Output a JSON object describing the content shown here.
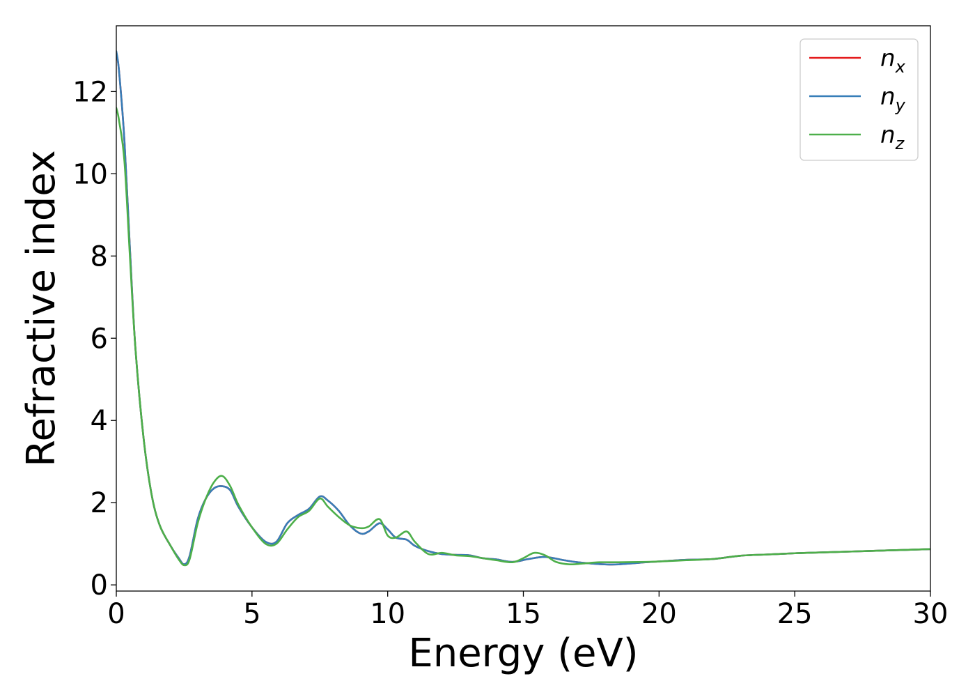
{
  "chart_data": {
    "type": "line",
    "title": "",
    "xlabel": "Energy (eV)",
    "ylabel": "Refractive index",
    "xlim": [
      0,
      30
    ],
    "ylim": [
      -0.15,
      13.6
    ],
    "xticks": [
      0,
      5,
      10,
      15,
      20,
      25,
      30
    ],
    "yticks": [
      0,
      2,
      4,
      6,
      8,
      10,
      12
    ],
    "grid": false,
    "legend_position": "top-right",
    "series": [
      {
        "name": "n",
        "subscript": "x",
        "color": "#e41a1c",
        "x": [
          0,
          0.1,
          0.3,
          0.5,
          0.7,
          1.0,
          1.3,
          1.6,
          2.0,
          2.3,
          2.5,
          2.7,
          3.0,
          3.3,
          3.6,
          3.9,
          4.2,
          4.5,
          5.0,
          5.5,
          5.9,
          6.3,
          6.7,
          7.1,
          7.5,
          7.8,
          8.2,
          8.6,
          9.0,
          9.3,
          9.7,
          10.0,
          10.3,
          10.7,
          11.0,
          11.5,
          12.0,
          12.5,
          13.0,
          13.5,
          14.0,
          14.6,
          15.2,
          15.8,
          16.5,
          17.0,
          17.5,
          18.0,
          18.5,
          19.5,
          20.0,
          21.0,
          22.0,
          23.0,
          24.0,
          25.0,
          26.0,
          27.0,
          28.0,
          29.0,
          30.0
        ],
        "y": [
          12.95,
          12.5,
          10.8,
          8.2,
          5.8,
          3.6,
          2.2,
          1.45,
          0.95,
          0.65,
          0.5,
          0.7,
          1.6,
          2.1,
          2.35,
          2.4,
          2.3,
          1.9,
          1.4,
          1.05,
          1.05,
          1.5,
          1.7,
          1.85,
          2.15,
          2.05,
          1.8,
          1.45,
          1.25,
          1.3,
          1.5,
          1.35,
          1.15,
          1.1,
          0.95,
          0.82,
          0.75,
          0.73,
          0.72,
          0.65,
          0.62,
          0.56,
          0.63,
          0.68,
          0.6,
          0.55,
          0.52,
          0.5,
          0.5,
          0.55,
          0.57,
          0.61,
          0.63,
          0.71,
          0.74,
          0.77,
          0.79,
          0.81,
          0.83,
          0.85,
          0.87
        ]
      },
      {
        "name": "n",
        "subscript": "y",
        "color": "#377eb8",
        "x": [
          0,
          0.1,
          0.3,
          0.5,
          0.7,
          1.0,
          1.3,
          1.6,
          2.0,
          2.3,
          2.5,
          2.7,
          3.0,
          3.3,
          3.6,
          3.9,
          4.2,
          4.5,
          5.0,
          5.5,
          5.9,
          6.3,
          6.7,
          7.1,
          7.5,
          7.8,
          8.2,
          8.6,
          9.0,
          9.3,
          9.7,
          10.0,
          10.3,
          10.7,
          11.0,
          11.5,
          12.0,
          12.5,
          13.0,
          13.5,
          14.0,
          14.6,
          15.2,
          15.8,
          16.5,
          17.0,
          17.5,
          18.0,
          18.5,
          19.5,
          20.0,
          21.0,
          22.0,
          23.0,
          24.0,
          25.0,
          26.0,
          27.0,
          28.0,
          29.0,
          30.0
        ],
        "y": [
          12.98,
          12.5,
          10.8,
          8.2,
          5.8,
          3.6,
          2.2,
          1.45,
          0.95,
          0.65,
          0.5,
          0.7,
          1.6,
          2.1,
          2.35,
          2.4,
          2.3,
          1.9,
          1.4,
          1.05,
          1.05,
          1.5,
          1.7,
          1.85,
          2.15,
          2.05,
          1.8,
          1.45,
          1.25,
          1.3,
          1.5,
          1.35,
          1.15,
          1.1,
          0.95,
          0.82,
          0.75,
          0.73,
          0.72,
          0.65,
          0.62,
          0.56,
          0.63,
          0.68,
          0.6,
          0.55,
          0.52,
          0.5,
          0.5,
          0.55,
          0.57,
          0.61,
          0.63,
          0.71,
          0.74,
          0.77,
          0.79,
          0.81,
          0.83,
          0.85,
          0.87
        ]
      },
      {
        "name": "n",
        "subscript": "z",
        "color": "#4daf4a",
        "x": [
          0,
          0.1,
          0.3,
          0.5,
          0.7,
          1.0,
          1.3,
          1.6,
          2.0,
          2.3,
          2.5,
          2.7,
          3.0,
          3.3,
          3.6,
          3.9,
          4.2,
          4.5,
          5.0,
          5.5,
          5.9,
          6.3,
          6.7,
          7.1,
          7.5,
          7.8,
          8.2,
          8.6,
          9.0,
          9.3,
          9.7,
          10.0,
          10.3,
          10.7,
          11.0,
          11.5,
          12.0,
          12.5,
          13.0,
          13.5,
          14.0,
          14.6,
          15.0,
          15.4,
          15.8,
          16.2,
          16.7,
          17.2,
          17.8,
          18.5,
          19.5,
          20.0,
          21.0,
          22.0,
          23.0,
          24.0,
          25.0,
          26.0,
          27.0,
          28.0,
          29.0,
          30.0
        ],
        "y": [
          11.6,
          11.3,
          10.3,
          8.0,
          5.8,
          3.6,
          2.2,
          1.45,
          0.95,
          0.62,
          0.48,
          0.62,
          1.5,
          2.1,
          2.5,
          2.65,
          2.4,
          1.95,
          1.4,
          1.0,
          1.0,
          1.35,
          1.65,
          1.8,
          2.1,
          1.9,
          1.65,
          1.45,
          1.38,
          1.42,
          1.6,
          1.2,
          1.15,
          1.3,
          1.05,
          0.75,
          0.78,
          0.72,
          0.7,
          0.65,
          0.6,
          0.55,
          0.65,
          0.78,
          0.72,
          0.56,
          0.5,
          0.52,
          0.55,
          0.55,
          0.56,
          0.57,
          0.6,
          0.63,
          0.71,
          0.74,
          0.77,
          0.79,
          0.81,
          0.83,
          0.85,
          0.87
        ]
      }
    ]
  }
}
